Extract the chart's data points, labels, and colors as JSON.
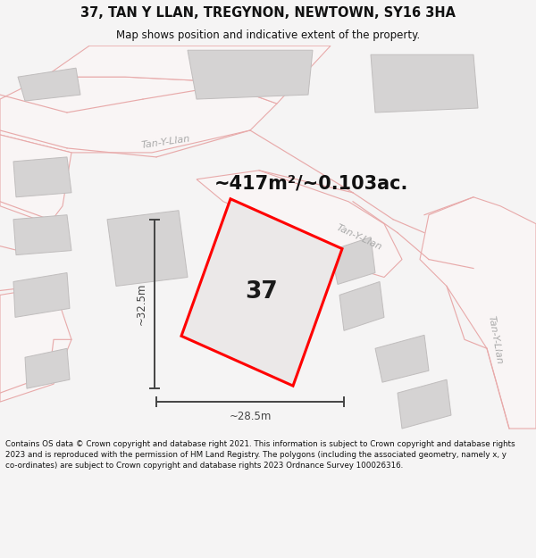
{
  "title": "37, TAN Y LLAN, TREGYNON, NEWTOWN, SY16 3HA",
  "subtitle": "Map shows position and indicative extent of the property.",
  "area_text": "~417m²/~0.103ac.",
  "label_37": "37",
  "dim_height": "~32.5m",
  "dim_width": "~28.5m",
  "footer": "Contains OS data © Crown copyright and database right 2021. This information is subject to Crown copyright and database rights 2023 and is reproduced with the permission of HM Land Registry. The polygons (including the associated geometry, namely x, y co-ordinates) are subject to Crown copyright and database rights 2023 Ordnance Survey 100026316.",
  "bg_color": "#f5f4f4",
  "map_bg": "#edeaea",
  "road_fill": "#f9f5f5",
  "road_edge": "#e8aaaa",
  "building_fill": "#d5d3d3",
  "building_edge": "#c0bdbd",
  "plot_fill": "#ebe8e8",
  "plot_edge": "#ff0000",
  "dim_color": "#444444",
  "street_color": "#aaaaaa",
  "title_color": "#111111",
  "footer_color": "#111111"
}
